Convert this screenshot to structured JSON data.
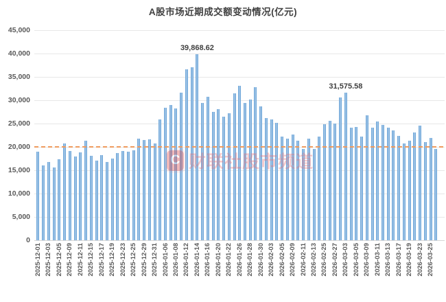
{
  "title": "A股市场近期成交额变动情况(亿元)",
  "watermark": {
    "logo_letter": "C",
    "text": "财联社股市频道"
  },
  "chart_data": {
    "type": "bar",
    "title": "A股市场近期成交额变动情况(亿元)",
    "xlabel": "",
    "ylabel": "",
    "ylim": [
      0,
      45000
    ],
    "grid": "horizontal",
    "ytick_labels": [
      "45,000",
      "40,000",
      "35,000",
      "30,000",
      "25,000",
      "20,000",
      "15,000",
      "10,000",
      "5,000",
      "0"
    ],
    "x_tick_labels": [
      "2025-12-01",
      "2025-12-03",
      "2025-12-05",
      "2025-12-09",
      "2025-12-11",
      "2025-12-15",
      "2025-12-17",
      "2025-12-19",
      "2025-12-23",
      "2025-12-25",
      "2025-12-29",
      "2025-12-31",
      "2026-01-06",
      "2026-01-08",
      "2026-01-12",
      "2026-01-14",
      "2026-01-16",
      "2026-01-20",
      "2026-01-22",
      "2026-01-26",
      "2026-01-28",
      "2026-01-30",
      "2026-02-03",
      "2026-02-05",
      "2026-02-09",
      "2026-02-11",
      "2026-02-13",
      "2026-02-25",
      "2026-02-27",
      "2026-03-03",
      "2026-03-05",
      "2026-03-09",
      "2026-03-11",
      "2026-03-13",
      "2026-03-17",
      "2026-03-19",
      "2026-03-23",
      "2026-03-25"
    ],
    "x_tick_interval": 2,
    "values": [
      18900,
      16050,
      16800,
      15600,
      17300,
      20700,
      19150,
      17900,
      18850,
      21300,
      18100,
      17100,
      18200,
      16800,
      17450,
      18700,
      19100,
      18900,
      19300,
      21800,
      21500,
      21600,
      20700,
      25850,
      28400,
      28900,
      28300,
      31600,
      36600,
      37100,
      39868.62,
      29400,
      30700,
      27450,
      28150,
      26400,
      27200,
      31450,
      33050,
      29400,
      30100,
      32800,
      28750,
      26200,
      25850,
      25100,
      22150,
      21800,
      22650,
      21300,
      19600,
      21700,
      19500,
      22200,
      24900,
      25600,
      25000,
      30650,
      31575.58,
      24050,
      24200,
      22250,
      26700,
      24150,
      25500,
      24750,
      24150,
      23500,
      22300,
      20750,
      21300,
      23050,
      24600,
      21050,
      21950,
      19600
    ],
    "data_labels": [
      {
        "text": "39,868.62",
        "bar_index": 30
      },
      {
        "text": "31,575.58",
        "bar_index": 58
      }
    ],
    "reference_line": {
      "value": 20000,
      "style": "dashed",
      "color": "#ED8C4F"
    },
    "colors": {
      "bar": "#5B9BD5",
      "bar_highlight": "#AECDE9",
      "grid": "#E7E7E7",
      "axis": "#D6D6D6",
      "tick_label": "#595959",
      "title": "#404040",
      "data_label": "#3F3F3F",
      "watermark_red": "#DD4A4A"
    },
    "legend": "none"
  }
}
